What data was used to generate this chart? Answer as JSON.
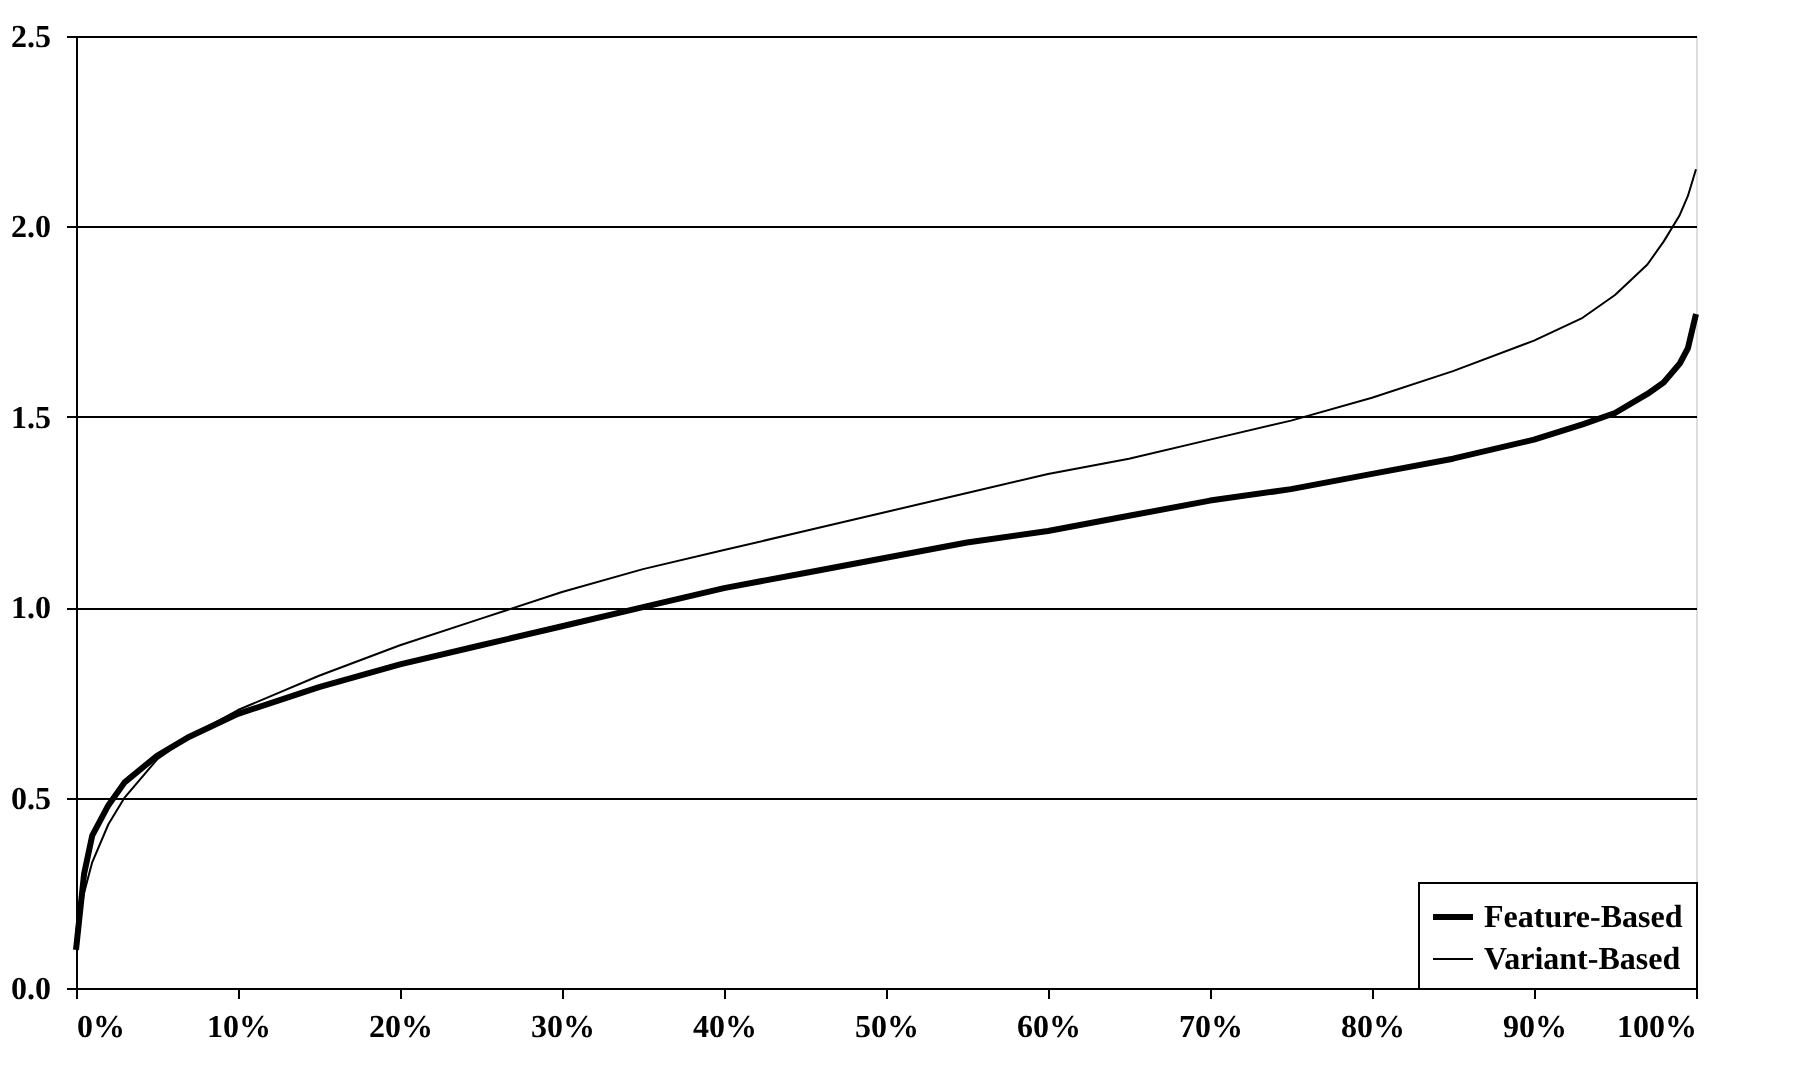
{
  "chart_data": {
    "type": "line",
    "x": [
      0,
      0.5,
      1,
      2,
      3,
      5,
      7,
      10,
      15,
      20,
      25,
      30,
      35,
      40,
      45,
      50,
      55,
      60,
      65,
      70,
      75,
      80,
      85,
      90,
      93,
      95,
      97,
      98,
      99,
      99.5,
      100
    ],
    "series": [
      {
        "name": "Feature-Based",
        "color": "#000000",
        "values": [
          0.1,
          0.3,
          0.4,
          0.48,
          0.54,
          0.61,
          0.66,
          0.72,
          0.79,
          0.85,
          0.9,
          0.95,
          1.0,
          1.05,
          1.09,
          1.13,
          1.17,
          1.2,
          1.24,
          1.28,
          1.31,
          1.35,
          1.39,
          1.44,
          1.48,
          1.51,
          1.56,
          1.59,
          1.64,
          1.68,
          1.77
        ]
      },
      {
        "name": "Variant-Based",
        "color": "#000000",
        "values": [
          0.15,
          0.25,
          0.33,
          0.43,
          0.5,
          0.6,
          0.66,
          0.73,
          0.82,
          0.9,
          0.97,
          1.04,
          1.1,
          1.15,
          1.2,
          1.25,
          1.3,
          1.35,
          1.39,
          1.44,
          1.49,
          1.55,
          1.62,
          1.7,
          1.76,
          1.82,
          1.9,
          1.96,
          2.03,
          2.08,
          2.15
        ]
      }
    ],
    "xlim": [
      0,
      100
    ],
    "xticks": [
      {
        "value": 0,
        "label": "0%"
      },
      {
        "value": 10,
        "label": "10%"
      },
      {
        "value": 20,
        "label": "20%"
      },
      {
        "value": 30,
        "label": "30%"
      },
      {
        "value": 40,
        "label": "40%"
      },
      {
        "value": 50,
        "label": "50%"
      },
      {
        "value": 60,
        "label": "60%"
      },
      {
        "value": 70,
        "label": "70%"
      },
      {
        "value": 80,
        "label": "80%"
      },
      {
        "value": 90,
        "label": "90%"
      },
      {
        "value": 100,
        "label": "100%"
      }
    ],
    "ylim": [
      0,
      2.5
    ],
    "yticks": [
      {
        "value": 0,
        "label": "0.0"
      },
      {
        "value": 0.5,
        "label": "0.5"
      },
      {
        "value": 1,
        "label": "1.0"
      },
      {
        "value": 1.5,
        "label": "1.5"
      },
      {
        "value": 2,
        "label": "2.0"
      },
      {
        "value": 2.5,
        "label": "2.5"
      }
    ],
    "grid": "y",
    "legend": "bottom right",
    "marker": "none"
  }
}
